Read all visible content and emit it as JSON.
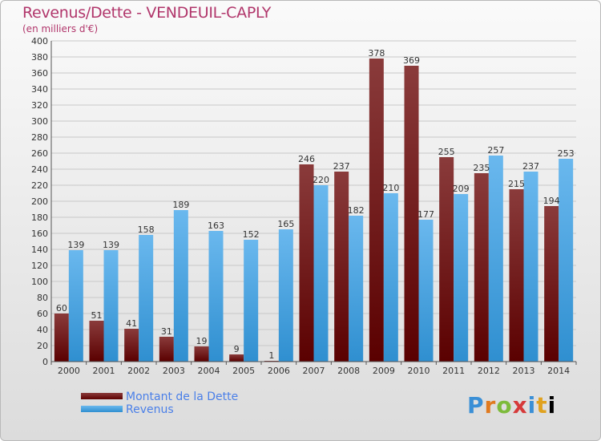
{
  "header": {
    "title": "Revenus/Dette - VENDEUIL-CAPLY",
    "subtitle": "(en milliers d'€)"
  },
  "legend": {
    "debt_label": "Montant de la Dette",
    "revenue_label": "Revenus"
  },
  "logo": {
    "text": "Proxiti"
  },
  "colors": {
    "title": "#b1366b",
    "debt_top": "#8a3b3b",
    "debt_bottom": "#5a0000",
    "revenue_top": "#6ab8ee",
    "revenue_bottom": "#2f8fd0",
    "legend_text": "#4a7fe8"
  },
  "chart_data": {
    "type": "bar",
    "title": "Revenus/Dette - VENDEUIL-CAPLY",
    "subtitle": "(en milliers d'€)",
    "categories": [
      "2000",
      "2001",
      "2002",
      "2003",
      "2004",
      "2005",
      "2006",
      "2007",
      "2008",
      "2009",
      "2010",
      "2011",
      "2012",
      "2013",
      "2014"
    ],
    "series": [
      {
        "name": "Montant de la Dette",
        "values": [
          60,
          51,
          41,
          31,
          19,
          9,
          1,
          246,
          237,
          378,
          369,
          255,
          235,
          215,
          194
        ]
      },
      {
        "name": "Revenus",
        "values": [
          139,
          139,
          158,
          189,
          163,
          152,
          165,
          220,
          182,
          210,
          177,
          209,
          257,
          237,
          253
        ]
      }
    ],
    "ylim": [
      0,
      400
    ],
    "yticks": [
      0,
      20,
      40,
      60,
      80,
      100,
      120,
      140,
      160,
      180,
      200,
      220,
      240,
      260,
      280,
      300,
      320,
      340,
      360,
      380,
      400
    ],
    "grid": true,
    "legend_position": "bottom-left"
  }
}
